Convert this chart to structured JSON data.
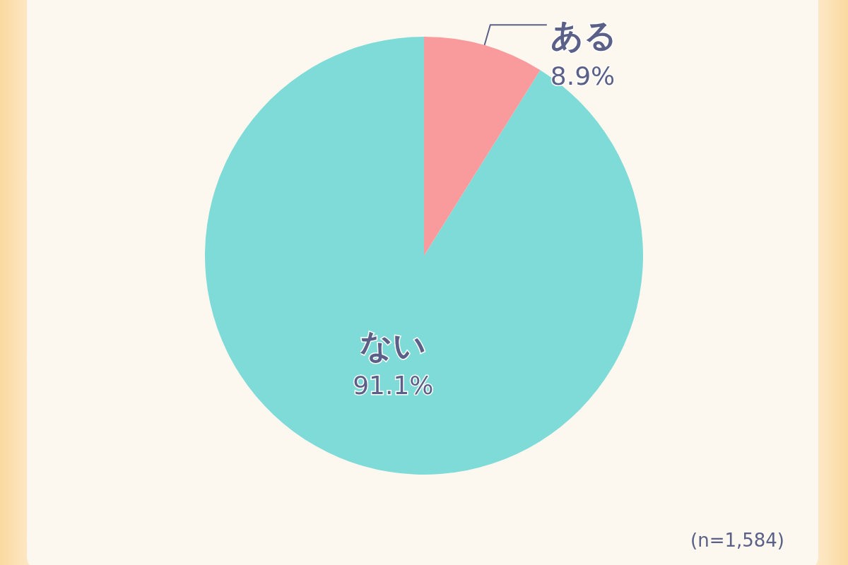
{
  "chart_data": {
    "type": "pie",
    "categories": [
      "ない",
      "ある"
    ],
    "values": [
      91.1,
      8.9
    ],
    "colors": [
      "#7fdbd8",
      "#f99a9d"
    ],
    "value_labels": [
      "91.1%",
      "8.9%"
    ],
    "annotations": [
      "(n=1,584)"
    ],
    "legend": false
  }
}
